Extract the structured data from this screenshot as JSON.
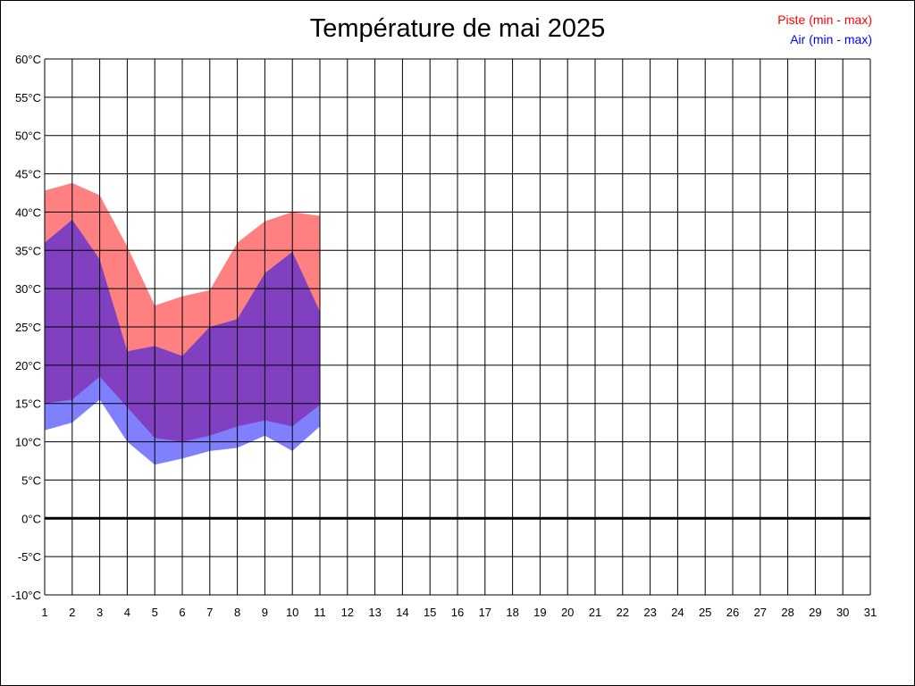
{
  "chart_data": {
    "type": "area",
    "title": "Température de mai 2025",
    "xlabel": "",
    "ylabel": "",
    "xlim": [
      1,
      31
    ],
    "ylim": [
      -10,
      60
    ],
    "y_step": 5,
    "y_unit": "°C",
    "grid": true,
    "legend_position": "top-right",
    "x_ticks": [
      "1",
      "2",
      "3",
      "4",
      "5",
      "6",
      "7",
      "8",
      "9",
      "10",
      "11",
      "12",
      "13",
      "14",
      "15",
      "16",
      "17",
      "18",
      "19",
      "20",
      "21",
      "22",
      "23",
      "24",
      "25",
      "26",
      "27",
      "28",
      "29",
      "30",
      "31"
    ],
    "y_ticks": [
      "60°C",
      "55°C",
      "50°C",
      "45°C",
      "40°C",
      "35°C",
      "30°C",
      "25°C",
      "20°C",
      "15°C",
      "10°C",
      "5°C",
      "0°C",
      "-5°C",
      "-10°C"
    ],
    "x": [
      1,
      2,
      3,
      4,
      5,
      6,
      7,
      8,
      9,
      10,
      11
    ],
    "series": [
      {
        "name": "Piste (min - max)",
        "color": "#ff0000",
        "fill": "#ff8080",
        "min": [
          15.0,
          15.5,
          18.5,
          14.5,
          10.5,
          10.0,
          10.8,
          12.0,
          12.8,
          12.0,
          14.8
        ],
        "max": [
          42.8,
          43.8,
          42.2,
          35.5,
          27.8,
          29.0,
          29.8,
          36.0,
          38.8,
          40.0,
          39.5
        ]
      },
      {
        "name": "Air (min - max)",
        "color": "#0000ff",
        "fill": "#8080ff",
        "min": [
          11.5,
          12.5,
          15.5,
          10.0,
          7.0,
          7.8,
          8.8,
          9.2,
          10.8,
          8.8,
          12.0
        ],
        "max": [
          36.0,
          39.0,
          33.8,
          21.8,
          22.5,
          21.2,
          25.0,
          26.0,
          32.0,
          34.8,
          27.0
        ]
      }
    ],
    "overlap_color": "#8040c0",
    "zero_line": true
  }
}
